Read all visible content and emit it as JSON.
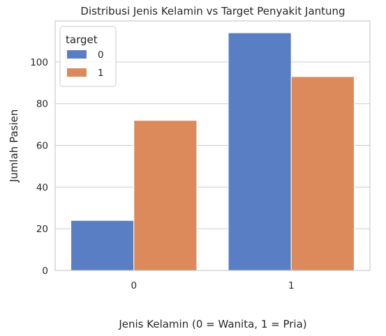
{
  "chart_data": {
    "type": "bar",
    "title": "Distribusi Jenis Kelamin vs Target Penyakit Jantung",
    "xlabel": "Jenis Kelamin (0 = Wanita, 1 = Pria)",
    "ylabel": "Jumlah Pasien",
    "categories": [
      "0",
      "1"
    ],
    "series": [
      {
        "name": "0",
        "values": [
          24,
          114
        ],
        "color": "#5a7ec4"
      },
      {
        "name": "1",
        "values": [
          72,
          93
        ],
        "color": "#dc8a5c"
      }
    ],
    "ylim": [
      0,
      119.7
    ],
    "yticks": [
      0,
      20,
      40,
      60,
      80,
      100
    ],
    "grid": true,
    "legend": {
      "title": "target",
      "placement": "top-left"
    }
  }
}
